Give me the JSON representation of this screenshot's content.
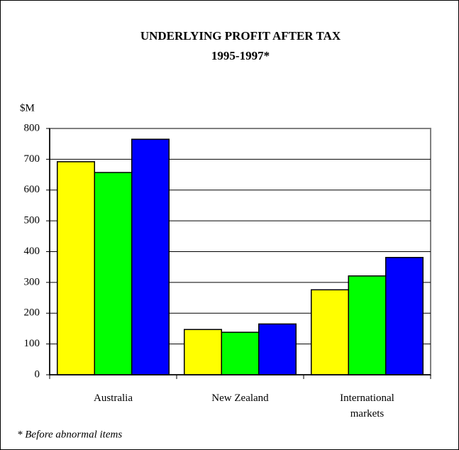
{
  "chart_data": {
    "type": "bar",
    "title": "UNDERLYING PROFIT AFTER TAX",
    "subtitle": "1995-1997*",
    "y_label": "$M",
    "categories": [
      "Australia",
      "New Zealand",
      "International markets"
    ],
    "series": [
      {
        "color": "#ffff00",
        "values": [
          692,
          147,
          276
        ]
      },
      {
        "color": "#00ff00",
        "values": [
          657,
          138,
          321
        ]
      },
      {
        "color": "#0000ff",
        "values": [
          765,
          165,
          381
        ]
      }
    ],
    "ylim": [
      0,
      800
    ],
    "yticks": [
      0,
      100,
      200,
      300,
      400,
      500,
      600,
      700,
      800
    ],
    "grid": true,
    "footnote": "* Before abnormal items"
  }
}
